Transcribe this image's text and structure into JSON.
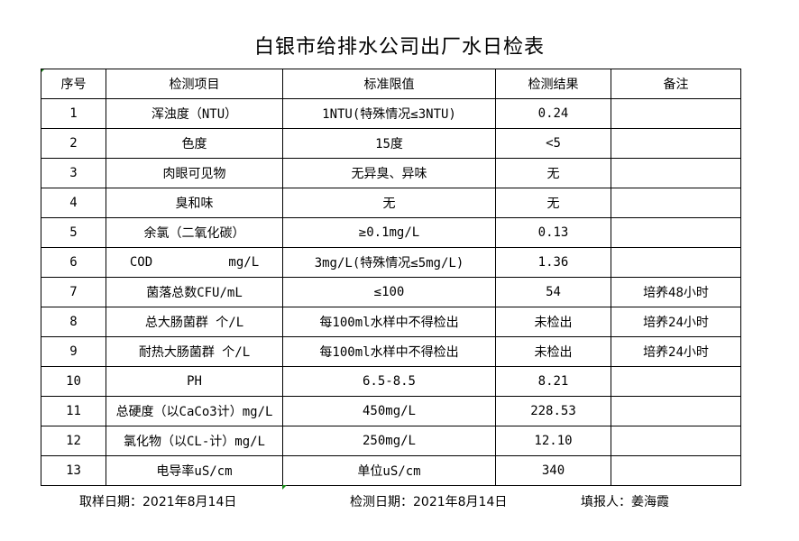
{
  "title": "白银市给排水公司出厂水日检表",
  "table": {
    "headers": [
      "序号",
      "检测项目",
      "标准限值",
      "检测结果",
      "备注"
    ],
    "rows": [
      [
        "1",
        "浑浊度（NTU）",
        "1NTU(特殊情况≤3NTU)",
        "0.24",
        ""
      ],
      [
        "2",
        "色度",
        "15度",
        "<5",
        ""
      ],
      [
        "3",
        "肉眼可见物",
        "无异臭、异味",
        "无",
        ""
      ],
      [
        "4",
        "臭和味",
        "无",
        "无",
        ""
      ],
      [
        "5",
        "余氯（二氧化碳）",
        "≥0.1mg/L",
        "0.13",
        ""
      ],
      [
        "6",
        "COD          mg/L",
        "3mg/L(特殊情况≤5mg/L)",
        "1.36",
        ""
      ],
      [
        "7",
        "菌落总数CFU/mL",
        "≤100",
        "54",
        "培养48小时"
      ],
      [
        "8",
        "总大肠菌群 个/L",
        "每100ml水样中不得检出",
        "未检出",
        "培养24小时"
      ],
      [
        "9",
        "耐热大肠菌群 个/L",
        "每100ml水样中不得检出",
        "未检出",
        "培养24小时"
      ],
      [
        "10",
        "PH",
        "6.5-8.5",
        "8.21",
        ""
      ],
      [
        "11",
        "总硬度（以CaCo3计）mg/L",
        "450mg/L",
        "228.53",
        ""
      ],
      [
        "12",
        "氯化物（以CL-计）mg/L",
        "250mg/L",
        "12.10",
        ""
      ],
      [
        "13",
        "电导率uS/cm",
        "单位uS/cm",
        "340",
        ""
      ]
    ]
  },
  "footer": {
    "sampling_date": "取样日期：2021年8月14日",
    "test_date": "检测日期：2021年8月14日",
    "reporter": "填报人：姜海霞"
  },
  "colors": {
    "cell_marker": "#1a8a1a"
  }
}
